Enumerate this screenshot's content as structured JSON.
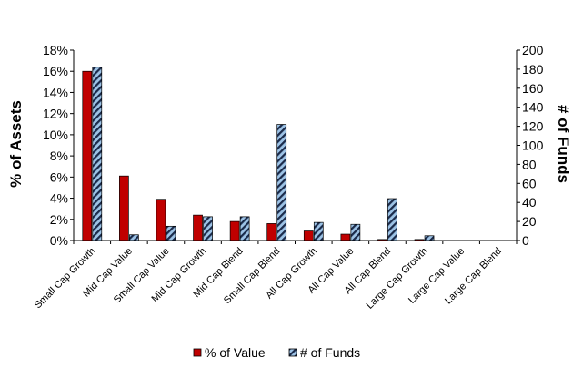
{
  "chart_data": {
    "type": "bar",
    "categories": [
      "Small Cap Growth",
      "Mid Cap Value",
      "Small Cap Value",
      "Mid Cap Growth",
      "Mid Cap Blend",
      "Small Cap Blend",
      "All Cap Growth",
      "All Cap Value",
      "All Cap Blend",
      "Large Cap Growth",
      "Large Cap Value",
      "Large Cap Blend"
    ],
    "series": [
      {
        "name": "% of Value",
        "axis": "left",
        "color": "#c00000",
        "pattern": "solid",
        "values": [
          16.0,
          6.1,
          3.9,
          2.4,
          1.8,
          1.6,
          0.9,
          0.6,
          0.1,
          0.1,
          0.0,
          0.0
        ]
      },
      {
        "name": "# of Funds",
        "axis": "right",
        "color": "#9dc3e6",
        "pattern": "diagonal-hatch",
        "values": [
          182,
          6,
          15,
          25,
          25,
          122,
          19,
          17,
          44,
          5,
          0,
          0
        ]
      }
    ],
    "ylabel": "% of Assets",
    "ylabel_right": "# of Funds",
    "ylim": [
      0,
      18
    ],
    "ylim_right": [
      0,
      200
    ],
    "yticks": [
      "0%",
      "2%",
      "4%",
      "6%",
      "8%",
      "10%",
      "12%",
      "14%",
      "16%",
      "18%"
    ],
    "yticks_right": [
      "0",
      "20",
      "40",
      "60",
      "80",
      "100",
      "120",
      "140",
      "160",
      "180",
      "200"
    ],
    "grid": false,
    "legend": {
      "placement": "bottom",
      "entries": [
        "% of Value",
        "# of Funds"
      ]
    }
  }
}
